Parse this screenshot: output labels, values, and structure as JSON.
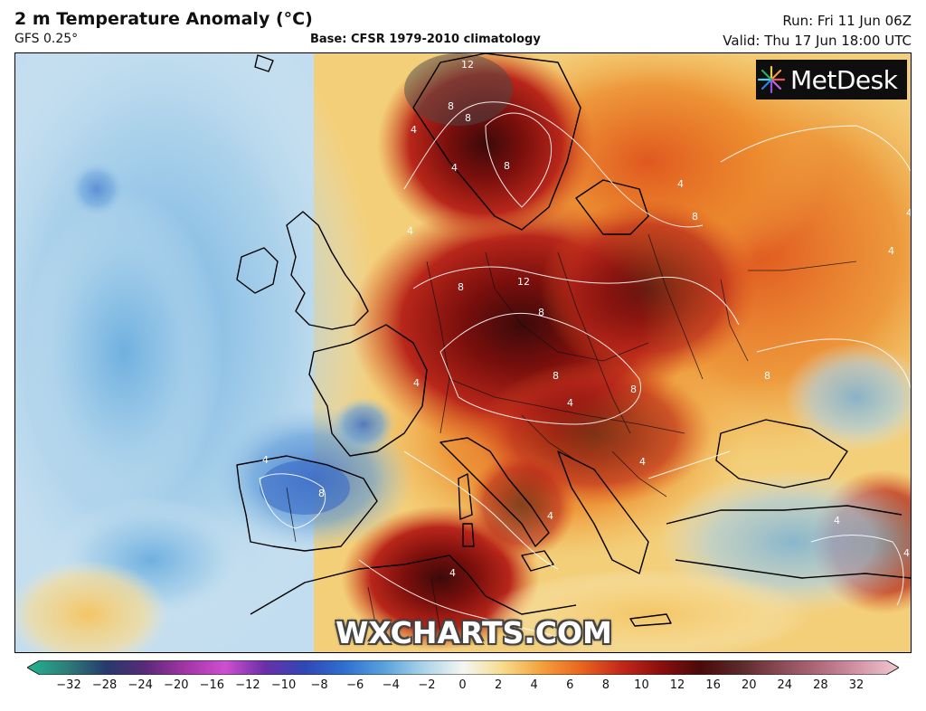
{
  "header": {
    "title": "2 m Temperature Anomaly (°C)",
    "model": "GFS 0.25°",
    "base": "Base: CFSR 1979-2010 climatology",
    "run": "Run: Fri 11 Jun 06Z",
    "valid": "Valid: Thu 17 Jun 18:00 UTC"
  },
  "logo": {
    "text": "MetDesk",
    "icon": "metdesk-starburst-icon"
  },
  "watermark": "WXCHARTS.COM",
  "colorbar": {
    "ticks": [
      "−32",
      "−28",
      "−24",
      "−20",
      "−16",
      "−12",
      "−10",
      "−8",
      "−6",
      "−4",
      "−2",
      "0",
      "2",
      "4",
      "6",
      "8",
      "10",
      "12",
      "16",
      "20",
      "24",
      "28",
      "32"
    ],
    "stops": [
      "#21b58f",
      "#2e7d7a",
      "#263a6b",
      "#5a2a7a",
      "#a335a6",
      "#cf4fd1",
      "#6a2fa8",
      "#3047b6",
      "#2f6fd0",
      "#58a1dc",
      "#a9d3ea",
      "#f4f6f2",
      "#f6dc8c",
      "#f4a03a",
      "#e8641e",
      "#c2281a",
      "#8a0e0e",
      "#4a0a0a",
      "#5b2a2a",
      "#8a4a55",
      "#b06a7c",
      "#d496a7",
      "#f0c8d2"
    ]
  },
  "contour_labels": [
    "12",
    "8",
    "8",
    "4",
    "4",
    "8",
    "8",
    "12",
    "8",
    "4",
    "8",
    "4",
    "4",
    "4",
    "8",
    "8",
    "4",
    "4",
    "8",
    "4",
    "4",
    "4",
    "8",
    "4",
    "8",
    "4",
    "4"
  ]
}
